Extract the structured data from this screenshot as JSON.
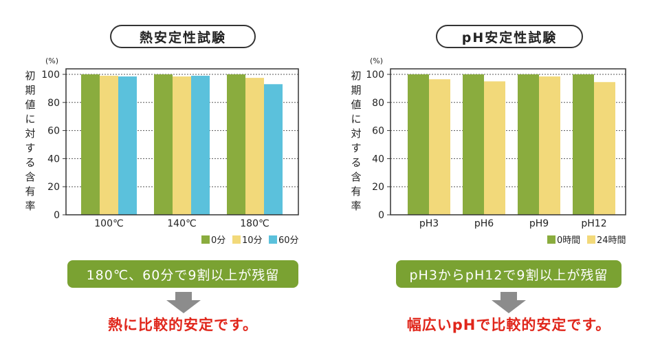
{
  "chart_data": [
    {
      "type": "bar",
      "title": "熱安定性試験",
      "ylabel": "初期値に対する含有率",
      "unit": "(%)",
      "ylim": [
        0,
        100
      ],
      "yticks": [
        0,
        20,
        40,
        60,
        80,
        100
      ],
      "categories": [
        "100℃",
        "140℃",
        "180℃"
      ],
      "series": [
        {
          "name": "0分",
          "color": "#8aac3e",
          "values": [
            100,
            100,
            100
          ]
        },
        {
          "name": "10分",
          "color": "#f2d97a",
          "values": [
            99,
            98.5,
            97.5
          ]
        },
        {
          "name": "60分",
          "color": "#5bc1dc",
          "values": [
            98.5,
            99,
            93
          ]
        }
      ],
      "legend": "bottom-right",
      "grid": true
    },
    {
      "type": "bar",
      "title": "pH安定性試験",
      "ylabel": "初期値に対する含有率",
      "unit": "(%)",
      "ylim": [
        0,
        100
      ],
      "yticks": [
        0,
        20,
        40,
        60,
        80,
        100
      ],
      "categories": [
        "pH3",
        "pH6",
        "pH9",
        "pH12"
      ],
      "series": [
        {
          "name": "0時間",
          "color": "#8aac3e",
          "values": [
            100,
            100,
            100,
            100
          ]
        },
        {
          "name": "24時間",
          "color": "#f2d97a",
          "values": [
            96.5,
            95,
            98.5,
            94.5
          ]
        }
      ],
      "legend": "bottom-right",
      "grid": true
    }
  ],
  "left": {
    "banner": "180℃、60分で9割以上が残留",
    "conclusion": "熱に比較的安定です。"
  },
  "right": {
    "banner": "pH3からpH12で9割以上が残留",
    "conclusion": "幅広いpHで比較的安定です。"
  },
  "colors": {
    "banner": "#7aa232",
    "arrow": "#8c8c8c",
    "conclusion": "#e0261b"
  }
}
